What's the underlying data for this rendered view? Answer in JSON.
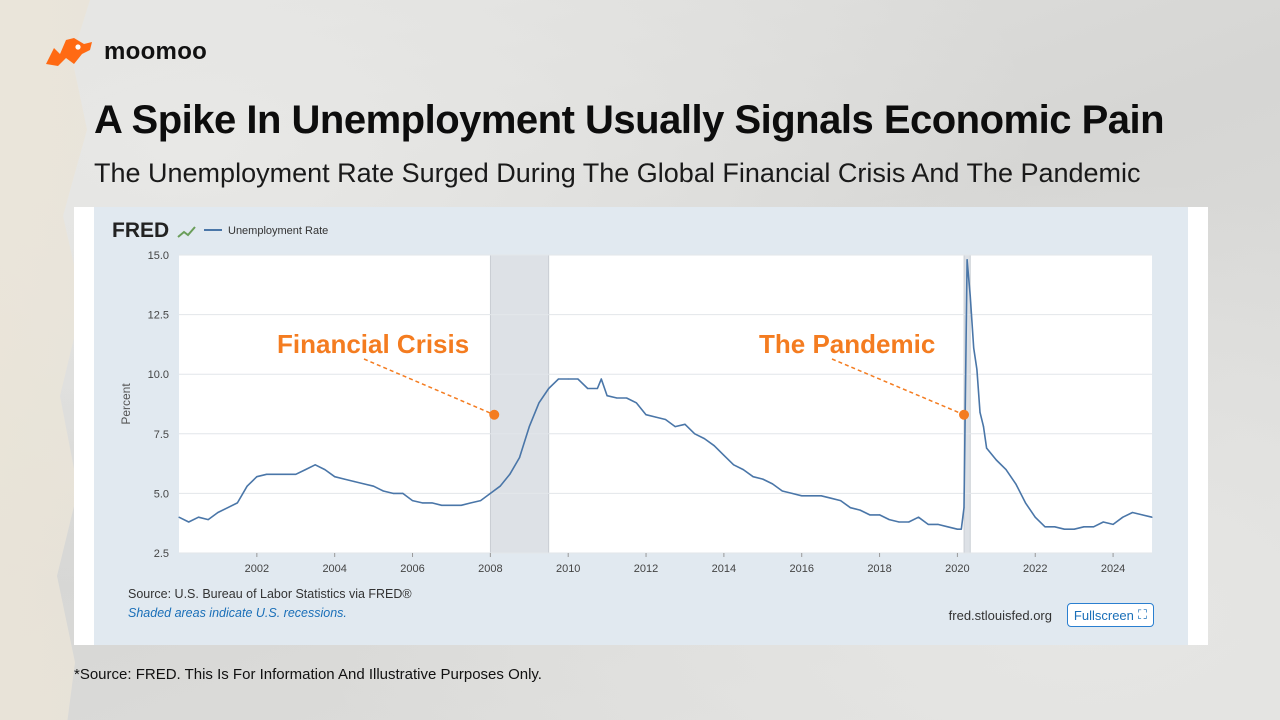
{
  "brand": {
    "name": "moomoo",
    "color": "#ff6a13"
  },
  "title": "A Spike In Unemployment Usually Signals Economic Pain",
  "subtitle": "The Unemployment Rate Surged During The Global Financial Crisis And The Pandemic",
  "footnote": "*Source: FRED. This Is For Information And Illustrative Purposes Only.",
  "fred": {
    "logo": "FRED",
    "source": "Source: U.S. Bureau of Labor Statistics via FRED®",
    "shaded_note": "Shaded areas indicate U.S. recessions.",
    "url": "fred.stlouisfed.org",
    "fullscreen_label": "Fullscreen"
  },
  "colors": {
    "line": "#4a76a8",
    "accent": "#f47c20",
    "recession": "#dde1e6",
    "grid": "#e2e6ea"
  },
  "chart_data": {
    "type": "line",
    "ylabel": "Percent",
    "ylim": [
      2.5,
      15.0
    ],
    "xlim": [
      2000.0,
      2025.0
    ],
    "yticks": [
      2.5,
      5.0,
      7.5,
      10.0,
      12.5,
      15.0
    ],
    "ytick_labels": [
      "2.5",
      "5.0",
      "7.5",
      "10.0",
      "12.5",
      "15.0"
    ],
    "xticks": [
      2002,
      2004,
      2006,
      2008,
      2010,
      2012,
      2014,
      2016,
      2018,
      2020,
      2022,
      2024
    ],
    "xtick_labels": [
      "2002",
      "2004",
      "2006",
      "2008",
      "2010",
      "2012",
      "2014",
      "2016",
      "2018",
      "2020",
      "2022",
      "2024"
    ],
    "legend": {
      "position": "top-left",
      "label": "Unemployment Rate"
    },
    "recessions": [
      [
        2008.0,
        2009.5
      ],
      [
        2020.17,
        2020.33
      ]
    ],
    "series": [
      {
        "name": "Unemployment Rate",
        "points": [
          [
            2000.0,
            4.0
          ],
          [
            2000.25,
            3.8
          ],
          [
            2000.5,
            4.0
          ],
          [
            2000.75,
            3.9
          ],
          [
            2001.0,
            4.2
          ],
          [
            2001.25,
            4.4
          ],
          [
            2001.5,
            4.6
          ],
          [
            2001.75,
            5.3
          ],
          [
            2002.0,
            5.7
          ],
          [
            2002.25,
            5.8
          ],
          [
            2002.5,
            5.8
          ],
          [
            2002.75,
            5.8
          ],
          [
            2003.0,
            5.8
          ],
          [
            2003.25,
            6.0
          ],
          [
            2003.5,
            6.2
          ],
          [
            2003.75,
            6.0
          ],
          [
            2004.0,
            5.7
          ],
          [
            2004.25,
            5.6
          ],
          [
            2004.5,
            5.5
          ],
          [
            2004.75,
            5.4
          ],
          [
            2005.0,
            5.3
          ],
          [
            2005.25,
            5.1
          ],
          [
            2005.5,
            5.0
          ],
          [
            2005.75,
            5.0
          ],
          [
            2006.0,
            4.7
          ],
          [
            2006.25,
            4.6
          ],
          [
            2006.5,
            4.6
          ],
          [
            2006.75,
            4.5
          ],
          [
            2007.0,
            4.5
          ],
          [
            2007.25,
            4.5
          ],
          [
            2007.5,
            4.6
          ],
          [
            2007.75,
            4.7
          ],
          [
            2008.0,
            5.0
          ],
          [
            2008.25,
            5.3
          ],
          [
            2008.5,
            5.8
          ],
          [
            2008.75,
            6.5
          ],
          [
            2009.0,
            7.8
          ],
          [
            2009.25,
            8.8
          ],
          [
            2009.5,
            9.4
          ],
          [
            2009.75,
            9.8
          ],
          [
            2010.0,
            9.8
          ],
          [
            2010.25,
            9.8
          ],
          [
            2010.5,
            9.4
          ],
          [
            2010.75,
            9.4
          ],
          [
            2010.85,
            9.8
          ],
          [
            2011.0,
            9.1
          ],
          [
            2011.25,
            9.0
          ],
          [
            2011.5,
            9.0
          ],
          [
            2011.75,
            8.8
          ],
          [
            2012.0,
            8.3
          ],
          [
            2012.25,
            8.2
          ],
          [
            2012.5,
            8.1
          ],
          [
            2012.75,
            7.8
          ],
          [
            2013.0,
            7.9
          ],
          [
            2013.25,
            7.5
          ],
          [
            2013.5,
            7.3
          ],
          [
            2013.75,
            7.0
          ],
          [
            2014.0,
            6.6
          ],
          [
            2014.25,
            6.2
          ],
          [
            2014.5,
            6.0
          ],
          [
            2014.75,
            5.7
          ],
          [
            2015.0,
            5.6
          ],
          [
            2015.25,
            5.4
          ],
          [
            2015.5,
            5.1
          ],
          [
            2015.75,
            5.0
          ],
          [
            2016.0,
            4.9
          ],
          [
            2016.25,
            4.9
          ],
          [
            2016.5,
            4.9
          ],
          [
            2016.75,
            4.8
          ],
          [
            2017.0,
            4.7
          ],
          [
            2017.25,
            4.4
          ],
          [
            2017.5,
            4.3
          ],
          [
            2017.75,
            4.1
          ],
          [
            2018.0,
            4.1
          ],
          [
            2018.25,
            3.9
          ],
          [
            2018.5,
            3.8
          ],
          [
            2018.75,
            3.8
          ],
          [
            2019.0,
            4.0
          ],
          [
            2019.25,
            3.7
          ],
          [
            2019.5,
            3.7
          ],
          [
            2019.75,
            3.6
          ],
          [
            2020.0,
            3.5
          ],
          [
            2020.1,
            3.5
          ],
          [
            2020.17,
            4.4
          ],
          [
            2020.25,
            14.8
          ],
          [
            2020.33,
            13.3
          ],
          [
            2020.42,
            11.1
          ],
          [
            2020.5,
            10.2
          ],
          [
            2020.58,
            8.4
          ],
          [
            2020.67,
            7.8
          ],
          [
            2020.75,
            6.9
          ],
          [
            2021.0,
            6.4
          ],
          [
            2021.25,
            6.0
          ],
          [
            2021.5,
            5.4
          ],
          [
            2021.75,
            4.6
          ],
          [
            2022.0,
            4.0
          ],
          [
            2022.25,
            3.6
          ],
          [
            2022.5,
            3.6
          ],
          [
            2022.75,
            3.5
          ],
          [
            2023.0,
            3.5
          ],
          [
            2023.25,
            3.6
          ],
          [
            2023.5,
            3.6
          ],
          [
            2023.75,
            3.8
          ],
          [
            2024.0,
            3.7
          ],
          [
            2024.25,
            4.0
          ],
          [
            2024.5,
            4.2
          ],
          [
            2024.75,
            4.1
          ],
          [
            2025.0,
            4.0
          ]
        ]
      }
    ],
    "annotations": [
      {
        "text": "Financial Crisis",
        "point": [
          2008.1,
          8.3
        ]
      },
      {
        "text": "The Pandemic",
        "point": [
          2020.17,
          8.3
        ]
      }
    ]
  }
}
